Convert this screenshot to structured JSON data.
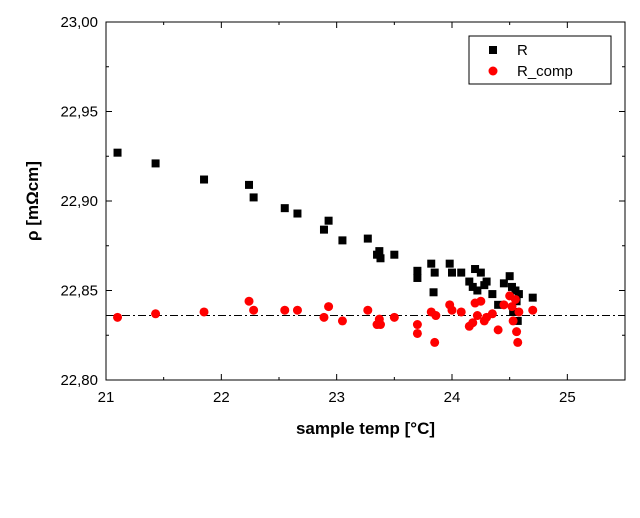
{
  "chart_data": {
    "type": "scatter",
    "xlabel": "sample temp [°C]",
    "ylabel": "ρ [mΩcm]",
    "xlim": [
      21,
      25.5
    ],
    "ylim": [
      22.8,
      23.0
    ],
    "xticks": [
      21,
      22,
      23,
      24,
      25
    ],
    "xtick_labels": [
      "21",
      "22",
      "23",
      "24",
      "25"
    ],
    "yticks": [
      22.8,
      22.85,
      22.9,
      22.95,
      23.0
    ],
    "ytick_labels": [
      "22,80",
      "22,85",
      "22,90",
      "22,95",
      "23,00"
    ],
    "grid": false,
    "legend_position": "top-right",
    "reference_line": {
      "style": "dash-dot",
      "y": 22.836
    },
    "series": [
      {
        "name": "R",
        "marker": "square",
        "color": "#000000",
        "points": [
          [
            21.1,
            22.927
          ],
          [
            21.43,
            22.921
          ],
          [
            21.85,
            22.912
          ],
          [
            22.24,
            22.909
          ],
          [
            22.28,
            22.902
          ],
          [
            22.55,
            22.896
          ],
          [
            22.66,
            22.893
          ],
          [
            22.89,
            22.884
          ],
          [
            22.93,
            22.889
          ],
          [
            23.05,
            22.878
          ],
          [
            23.27,
            22.879
          ],
          [
            23.35,
            22.87
          ],
          [
            23.37,
            22.872
          ],
          [
            23.38,
            22.868
          ],
          [
            23.5,
            22.87
          ],
          [
            23.7,
            22.861
          ],
          [
            23.7,
            22.857
          ],
          [
            23.82,
            22.865
          ],
          [
            23.85,
            22.86
          ],
          [
            23.84,
            22.849
          ],
          [
            23.98,
            22.865
          ],
          [
            24.0,
            22.86
          ],
          [
            24.08,
            22.86
          ],
          [
            24.15,
            22.855
          ],
          [
            24.18,
            22.852
          ],
          [
            24.2,
            22.862
          ],
          [
            24.22,
            22.85
          ],
          [
            24.25,
            22.86
          ],
          [
            24.28,
            22.853
          ],
          [
            24.3,
            22.855
          ],
          [
            24.35,
            22.848
          ],
          [
            24.4,
            22.842
          ],
          [
            24.45,
            22.854
          ],
          [
            24.5,
            22.858
          ],
          [
            24.52,
            22.852
          ],
          [
            24.55,
            22.85
          ],
          [
            24.58,
            22.848
          ],
          [
            24.56,
            22.844
          ],
          [
            24.53,
            22.838
          ],
          [
            24.57,
            22.833
          ],
          [
            24.7,
            22.846
          ]
        ]
      },
      {
        "name": "R_comp",
        "marker": "circle",
        "color": "#ff0000",
        "points": [
          [
            21.1,
            22.835
          ],
          [
            21.43,
            22.837
          ],
          [
            21.85,
            22.838
          ],
          [
            22.24,
            22.844
          ],
          [
            22.28,
            22.839
          ],
          [
            22.55,
            22.839
          ],
          [
            22.66,
            22.839
          ],
          [
            22.89,
            22.835
          ],
          [
            22.93,
            22.841
          ],
          [
            23.05,
            22.833
          ],
          [
            23.27,
            22.839
          ],
          [
            23.35,
            22.831
          ],
          [
            23.37,
            22.834
          ],
          [
            23.38,
            22.831
          ],
          [
            23.5,
            22.835
          ],
          [
            23.7,
            22.831
          ],
          [
            23.7,
            22.826
          ],
          [
            23.82,
            22.838
          ],
          [
            23.85,
            22.821
          ],
          [
            23.86,
            22.836
          ],
          [
            23.98,
            22.842
          ],
          [
            24.0,
            22.839
          ],
          [
            24.08,
            22.838
          ],
          [
            24.15,
            22.83
          ],
          [
            24.18,
            22.832
          ],
          [
            24.2,
            22.843
          ],
          [
            24.22,
            22.836
          ],
          [
            24.25,
            22.844
          ],
          [
            24.28,
            22.833
          ],
          [
            24.3,
            22.835
          ],
          [
            24.35,
            22.837
          ],
          [
            24.4,
            22.828
          ],
          [
            24.45,
            22.842
          ],
          [
            24.5,
            22.847
          ],
          [
            24.52,
            22.841
          ],
          [
            24.55,
            22.845
          ],
          [
            24.58,
            22.838
          ],
          [
            24.56,
            22.827
          ],
          [
            24.53,
            22.833
          ],
          [
            24.57,
            22.821
          ],
          [
            24.7,
            22.839
          ]
        ]
      }
    ]
  }
}
